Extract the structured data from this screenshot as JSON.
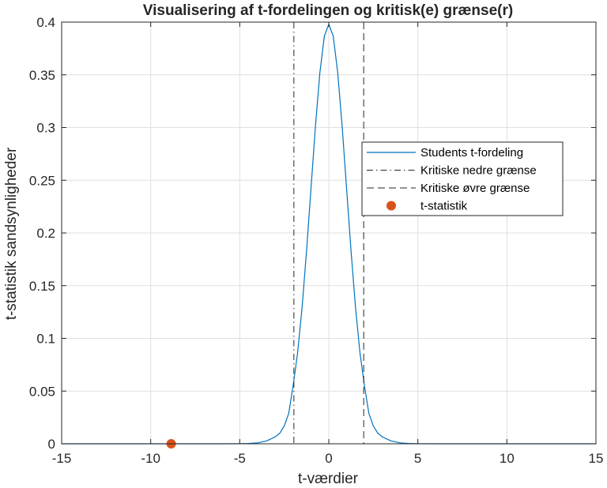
{
  "chart_data": {
    "type": "line",
    "title": "Visualisering af t-fordelingen og kritisk(e) grænse(r)",
    "xlabel": "t-værdier",
    "ylabel": "t-statistik sandsynligheder",
    "xlim": [
      -15,
      15
    ],
    "ylim": [
      0,
      0.4
    ],
    "xticks": [
      -15,
      -10,
      -5,
      0,
      5,
      10,
      15
    ],
    "xtick_labels": [
      "-15",
      "-10",
      "-5",
      "0",
      "5",
      "10",
      "15"
    ],
    "yticks": [
      0,
      0.05,
      0.1,
      0.15,
      0.2,
      0.25,
      0.3,
      0.35,
      0.4
    ],
    "ytick_labels": [
      "0",
      "0.05",
      "0.1",
      "0.15",
      "0.2",
      "0.25",
      "0.3",
      "0.35",
      "0.4"
    ],
    "grid": true,
    "legend_position": "right",
    "series": [
      {
        "name": "Students t-fordeling",
        "kind": "line",
        "color": "#0072BD",
        "x": [
          -15,
          -10,
          -6,
          -5,
          -4.5,
          -4,
          -3.5,
          -3,
          -2.75,
          -2.5,
          -2.25,
          -2,
          -1.75,
          -1.5,
          -1.25,
          -1,
          -0.75,
          -0.5,
          -0.25,
          0,
          0.25,
          0.5,
          0.75,
          1,
          1.25,
          1.5,
          1.75,
          2,
          2.25,
          2.5,
          2.75,
          3,
          3.5,
          4,
          4.5,
          5,
          6,
          10,
          15
        ],
        "y": [
          0,
          0,
          0,
          0.0001,
          0.0003,
          0.0009,
          0.0027,
          0.0066,
          0.0101,
          0.0169,
          0.0289,
          0.0553,
          0.0864,
          0.1293,
          0.1827,
          0.242,
          0.3011,
          0.3521,
          0.3867,
          0.398,
          0.3867,
          0.3521,
          0.3011,
          0.242,
          0.1827,
          0.1293,
          0.0864,
          0.0553,
          0.0289,
          0.0169,
          0.0101,
          0.0066,
          0.0027,
          0.0009,
          0.0003,
          0.0001,
          0,
          0,
          0
        ]
      },
      {
        "name": "Kritiske nedre grænse",
        "kind": "vline",
        "color": "#262626",
        "dash": "dash-dot",
        "x": -1.96
      },
      {
        "name": "Kritiske øvre grænse",
        "kind": "vline",
        "color": "#262626",
        "dash": "dashed",
        "x": 1.96
      },
      {
        "name": "t-statistik",
        "kind": "scatter",
        "color": "#D95319",
        "x": [
          -8.85
        ],
        "y": [
          0
        ]
      }
    ]
  }
}
